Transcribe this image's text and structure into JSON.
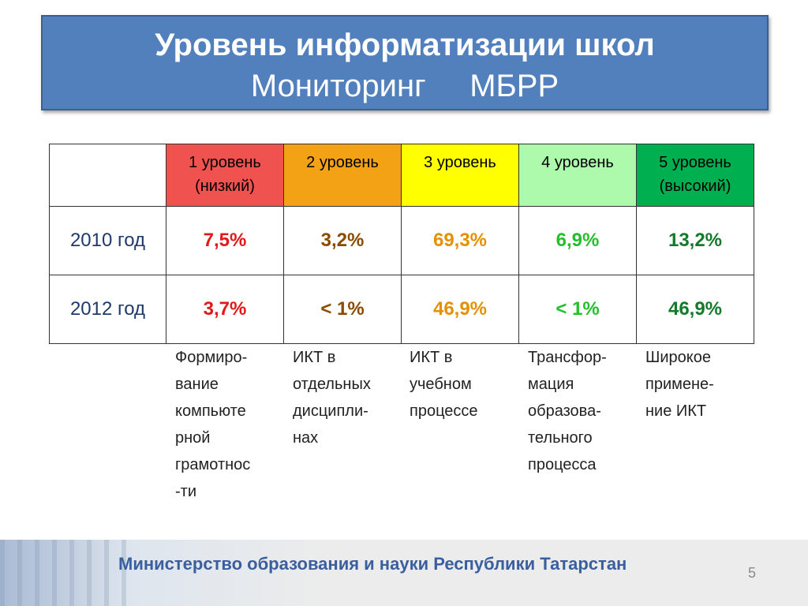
{
  "title": {
    "line1": "Уровень информатизации школ",
    "line2": "Мониторинг     МБРР"
  },
  "table": {
    "headers": [
      {
        "label": "1 уровень\n(низкий)",
        "color": "#f0534f"
      },
      {
        "label": "2 уровень",
        "color": "#f4a215"
      },
      {
        "label": "3 уровень",
        "color": "#ffff00"
      },
      {
        "label": "4 уровень",
        "color": "#adfaad"
      },
      {
        "label": "5 уровень\n(высокий)",
        "color": "#00b050"
      }
    ],
    "rows": [
      {
        "year": "2010 год",
        "values": [
          "7,5%",
          "3,2%",
          "69,3%",
          "6,9%",
          "13,2%"
        ]
      },
      {
        "year": "2012 год",
        "values": [
          "3,7%",
          "< 1%",
          "46,9%",
          "< 1%",
          "46,9%"
        ]
      }
    ]
  },
  "descriptions": [
    "Формиро-\nвание\nкомпьюте\nрной\nграмотнос\n-ти",
    "ИКТ в\nотдельных\nдисципли-\nнах",
    "ИКТ в\nучебном\nпроцессе",
    "Трансфор-\nмация\nобразова-\nтельного\nпроцесса",
    "Широкое\nпримене-\nние ИКТ"
  ],
  "footer": {
    "text": "Министерство образования и науки Республики Татарстан",
    "page_number": "5"
  }
}
